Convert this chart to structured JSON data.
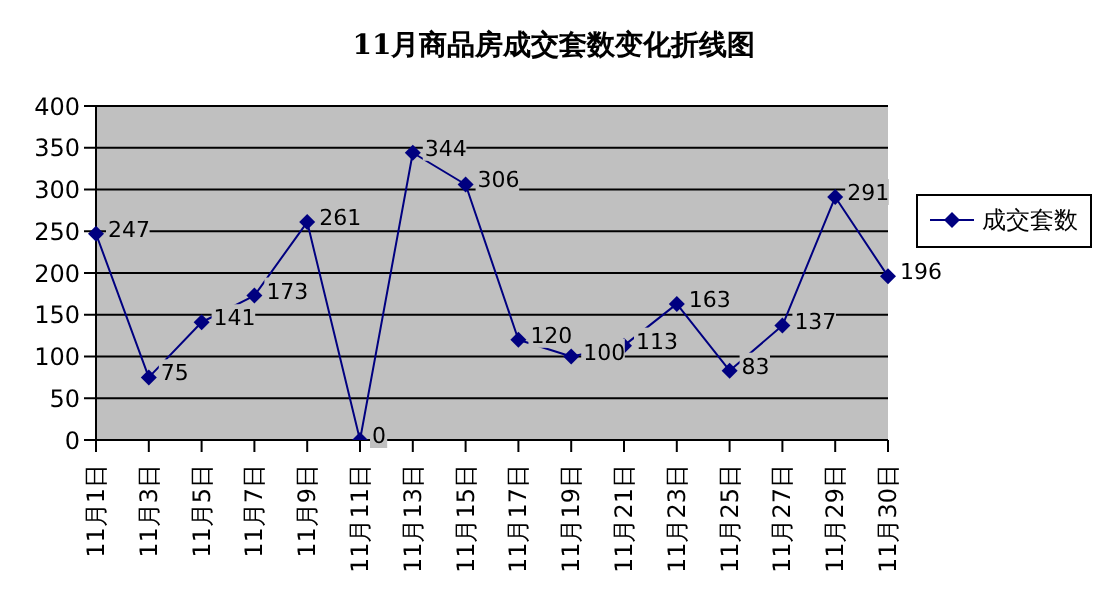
{
  "chart_data": {
    "type": "line",
    "title": "11月商品房成交套数变化折线图",
    "categories": [
      "11月1日",
      "11月3日",
      "11月5日",
      "11月7日",
      "11月9日",
      "11月11日",
      "11月13日",
      "11月15日",
      "11月17日",
      "11月19日",
      "11月21日",
      "11月23日",
      "11月25日",
      "11月27日",
      "11月29日",
      "11月30日"
    ],
    "series": [
      {
        "name": "成交套数",
        "color": "#000080",
        "values": [
          247,
          75,
          141,
          173,
          261,
          0,
          344,
          306,
          120,
          100,
          113,
          163,
          83,
          137,
          291,
          196
        ]
      }
    ],
    "ylim": [
      0,
      400
    ],
    "yticks": [
      0,
      50,
      100,
      150,
      200,
      250,
      300,
      350,
      400
    ],
    "grid": "y",
    "legend": "right",
    "marker": "diamond",
    "line_style": "solid",
    "data_labels": true
  }
}
